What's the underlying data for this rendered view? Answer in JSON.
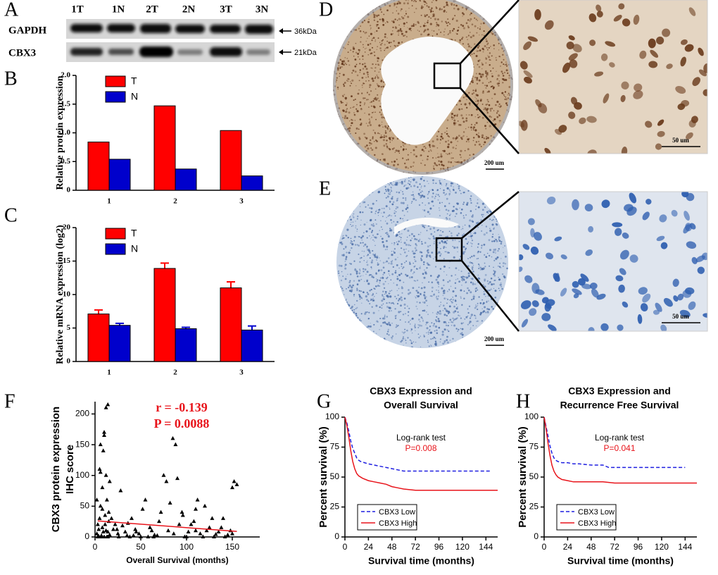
{
  "panel_labels": [
    "A",
    "B",
    "C",
    "D",
    "E",
    "F",
    "G",
    "H"
  ],
  "blot": {
    "lanes": [
      "1T",
      "1N",
      "2T",
      "2N",
      "3T",
      "3N"
    ],
    "rows": [
      {
        "name": "GAPDH",
        "size": "36kDa"
      },
      {
        "name": "CBX3",
        "size": "21kDa"
      }
    ]
  },
  "ihc": {
    "scale_overview": "200 um",
    "scale_zoom": "50 um"
  },
  "chart_data": [
    {
      "type": "bar",
      "y_label": "Relative protein expression",
      "categories": [
        "1",
        "2",
        "3"
      ],
      "series": [
        {
          "name": "T",
          "color": "#ff0000",
          "values": [
            0.84,
            1.47,
            1.04
          ]
        },
        {
          "name": "N",
          "color": "#0000cc",
          "values": [
            0.54,
            0.37,
            0.25
          ]
        }
      ],
      "ylim": [
        0,
        2
      ],
      "yticks": [
        0,
        0.5,
        {
          "value": 1,
          "label": "1.0"
        },
        1.5,
        {
          "value": 2,
          "label": "2.0"
        }
      ],
      "legend": "upper left"
    },
    {
      "type": "bar",
      "y_label": "Relative mRNA expression (log2)",
      "categories": [
        "1",
        "2",
        "3"
      ],
      "series": [
        {
          "name": "T",
          "color": "#ff0000",
          "values": [
            7.1,
            13.9,
            11.0
          ],
          "errors": [
            0.6,
            0.8,
            0.9
          ]
        },
        {
          "name": "N",
          "color": "#0000cc",
          "values": [
            5.4,
            4.9,
            4.7
          ],
          "errors": [
            0.3,
            0.2,
            0.6
          ]
        }
      ],
      "ylim": [
        0,
        20
      ],
      "yticks": [
        0,
        5,
        10,
        15,
        20
      ],
      "legend": "upper left"
    },
    {
      "type": "scatter",
      "y_label": [
        "CBX3 protein expression",
        "IHC score"
      ],
      "x_label": "Overall Survival (months)",
      "annotations": [
        {
          "text": "r  = -0.139",
          "color": "#e8141b"
        },
        {
          "text": "P = 0.0088",
          "color": "#e8141b"
        }
      ],
      "color": "#000000",
      "x": [
        2,
        3,
        4,
        5,
        6,
        7,
        8,
        9,
        10,
        11,
        12,
        13,
        14,
        15,
        16,
        3,
        5,
        7,
        9,
        11,
        13,
        15,
        2,
        4,
        6,
        8,
        10,
        12,
        14,
        6,
        8,
        10,
        12,
        14,
        16,
        20,
        25,
        30,
        35,
        40,
        45,
        50,
        55,
        60,
        65,
        70,
        75,
        80,
        85,
        90,
        95,
        100,
        105,
        110,
        115,
        120,
        125,
        130,
        135,
        140,
        145,
        150,
        155,
        22,
        28,
        33,
        38,
        44,
        48,
        52,
        58,
        62,
        68,
        72,
        78,
        82,
        88,
        92,
        98,
        102,
        108,
        112,
        118,
        122,
        128,
        132,
        138,
        142,
        148,
        152,
        18,
        26,
        42,
        64,
        86,
        96,
        110,
        24,
        36,
        150
      ],
      "values": [
        5,
        0,
        12,
        30,
        150,
        2,
        45,
        8,
        170,
        20,
        100,
        60,
        215,
        40,
        3,
        20,
        110,
        0,
        140,
        35,
        0,
        25,
        60,
        1,
        105,
        15,
        0,
        210,
        8,
        50,
        80,
        165,
        10,
        0,
        90,
        12,
        5,
        18,
        2,
        30,
        8,
        0,
        60,
        15,
        3,
        25,
        100,
        10,
        160,
        95,
        40,
        0,
        20,
        10,
        5,
        50,
        15,
        0,
        8,
        30,
        3,
        80,
        85,
        20,
        75,
        8,
        0,
        12,
        5,
        45,
        0,
        10,
        2,
        40,
        90,
        55,
        150,
        20,
        0,
        8,
        25,
        60,
        0,
        10,
        30,
        4,
        15,
        0,
        10,
        90,
        30,
        0,
        2,
        0,
        5,
        35,
        45,
        12,
        22,
        5
      ],
      "trend": {
        "x": [
          3,
          155
        ],
        "values": [
          26,
          9
        ],
        "color": "#e8141b"
      },
      "xlim": [
        0,
        180
      ],
      "xticks": [
        0,
        50,
        100,
        150
      ],
      "ylim": [
        0,
        220
      ],
      "yticks": [
        0,
        50,
        100,
        150,
        200
      ]
    },
    {
      "type": "line",
      "title": [
        "CBX3 Expression and",
        "Overall Survival"
      ],
      "x_label": "Survival time (months)",
      "y_label": "Percent survival (%)",
      "annotations": [
        {
          "text": "Log-rank test",
          "color": "#000000"
        },
        {
          "text": "P=0.008",
          "color": "#e8141b"
        }
      ],
      "series": [
        {
          "name": "CBX3 Low",
          "color": "#1f1fe0",
          "dash": true,
          "x": [
            0,
            2,
            4,
            6,
            8,
            10,
            12,
            14,
            16,
            20,
            24,
            30,
            36,
            42,
            48,
            54,
            60,
            66,
            72,
            84,
            96,
            120,
            144,
            150
          ],
          "values": [
            100,
            95,
            88,
            80,
            74,
            70,
            66,
            64,
            63,
            62,
            61,
            60,
            59,
            58,
            57,
            56,
            55,
            55,
            55,
            55,
            55,
            55,
            55,
            55
          ]
        },
        {
          "name": "CBX3 High",
          "color": "#e8141b",
          "dash": false,
          "x": [
            0,
            2,
            4,
            6,
            8,
            10,
            12,
            14,
            18,
            24,
            30,
            36,
            42,
            48,
            54,
            60,
            72,
            84,
            96,
            120,
            144,
            156
          ],
          "values": [
            100,
            93,
            83,
            72,
            63,
            57,
            53,
            51,
            49,
            47,
            46,
            45,
            44,
            42,
            41,
            40,
            39,
            39,
            39,
            39,
            39,
            39
          ]
        }
      ],
      "xlim": [
        0,
        156
      ],
      "xticks": [
        0,
        24,
        48,
        72,
        96,
        120,
        144
      ],
      "ylim": [
        0,
        100
      ],
      "yticks": [
        0,
        25,
        50,
        75,
        100
      ],
      "legend": "lower left"
    },
    {
      "type": "line",
      "title": [
        "CBX3 Expression and",
        "Recurrence Free Survival"
      ],
      "x_label": "Survival time (months)",
      "y_label": "Percent survival (%)",
      "annotations": [
        {
          "text": "Log-rank test",
          "color": "#000000"
        },
        {
          "text": "P=0.041",
          "color": "#e8141b"
        }
      ],
      "series": [
        {
          "name": "CBX3 Low",
          "color": "#1f1fe0",
          "dash": true,
          "x": [
            0,
            2,
            4,
            6,
            8,
            10,
            12,
            14,
            18,
            24,
            30,
            36,
            48,
            60,
            66,
            72,
            96,
            120,
            144
          ],
          "values": [
            100,
            92,
            84,
            76,
            70,
            66,
            64,
            63,
            62,
            62,
            61,
            61,
            60,
            60,
            58,
            58,
            58,
            58,
            58
          ]
        },
        {
          "name": "CBX3 High",
          "color": "#e8141b",
          "dash": false,
          "x": [
            0,
            2,
            4,
            6,
            8,
            10,
            12,
            14,
            18,
            24,
            30,
            36,
            48,
            60,
            72,
            84,
            96,
            120,
            144,
            156
          ],
          "values": [
            100,
            90,
            78,
            68,
            60,
            55,
            52,
            50,
            48,
            47,
            46,
            46,
            46,
            46,
            45,
            45,
            45,
            45,
            45,
            45
          ]
        }
      ],
      "xlim": [
        0,
        156
      ],
      "xticks": [
        0,
        24,
        48,
        72,
        96,
        120,
        144
      ],
      "ylim": [
        0,
        100
      ],
      "yticks": [
        0,
        25,
        50,
        75,
        100
      ],
      "legend": "lower left"
    }
  ]
}
